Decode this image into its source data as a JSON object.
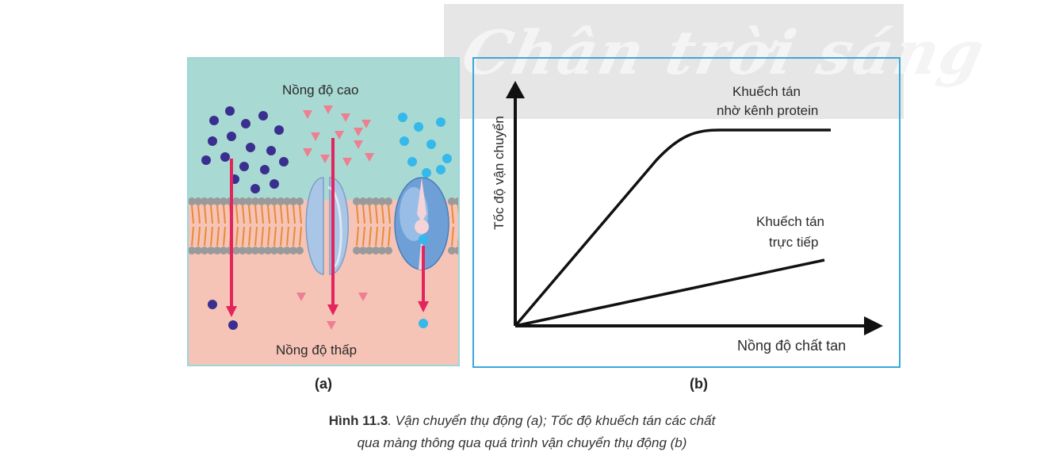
{
  "watermark": {
    "text": "Chân trời sáng"
  },
  "panel_a": {
    "label_top": "Nồng độ cao",
    "label_bottom": "Nồng độ thấp",
    "sublabel": "(a)"
  },
  "panel_b": {
    "curve_protein_label_line1": "Khuếch tán",
    "curve_protein_label_line2": "nhờ kênh protein",
    "curve_direct_label_line1": "Khuếch tán",
    "curve_direct_label_line2": "trực tiếp",
    "y_axis_label": "Tốc độ vận chuyển",
    "x_axis_label": "Nồng độ chất tan",
    "sublabel": "(b)"
  },
  "caption": {
    "figure_number": "Hình 11.3",
    "line1_rest": ". Vận chuyển thụ động (a); Tốc độ khuếch tán các chất",
    "line2": "qua màng thông qua quá trình vận chuyển thụ động (b)"
  },
  "colors": {
    "top_bg": "#a8dad3",
    "bottom_bg": "#f6c4b6",
    "lipid_head": "#9a9a9a",
    "lipid_tail": "#e88a3a",
    "arrow": "#e3245e",
    "dark_molecule": "#3a2f8f",
    "triangle": "#ee7f90",
    "light_molecule": "#35b8ea",
    "protein": "#a9c6e6",
    "frame_b": "#3aa8da"
  }
}
